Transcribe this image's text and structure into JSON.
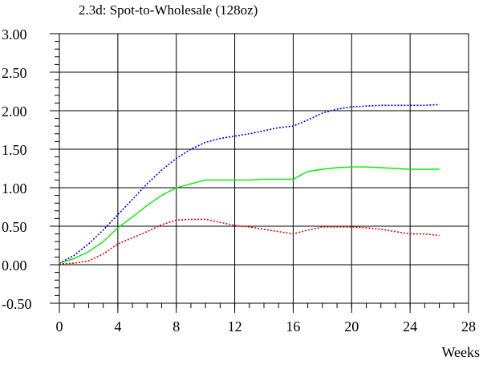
{
  "chart_data": {
    "type": "line",
    "title": "2.3d: Spot-to-Wholesale (128oz)",
    "xlabel": "Weeks",
    "ylabel": "",
    "xlim": [
      0,
      28
    ],
    "ylim": [
      -0.5,
      3.0
    ],
    "x_ticks": [
      "0",
      "4",
      "8",
      "12",
      "16",
      "20",
      "24",
      "28"
    ],
    "y_ticks": [
      "-0.50",
      "0.00",
      "0.50",
      "1.00",
      "1.50",
      "2.00",
      "2.50",
      "3.00"
    ],
    "grid": true,
    "series": [
      {
        "color": "#0000ff",
        "style": "dotted",
        "x": [
          0,
          1,
          2,
          3,
          4,
          5,
          6,
          7,
          8,
          9,
          10,
          11,
          12,
          13,
          14,
          15,
          16,
          17,
          18,
          19,
          20,
          21,
          22,
          23,
          24,
          25,
          26
        ],
        "y": [
          0.02,
          0.12,
          0.27,
          0.45,
          0.65,
          0.85,
          1.05,
          1.23,
          1.38,
          1.5,
          1.59,
          1.64,
          1.67,
          1.7,
          1.74,
          1.78,
          1.8,
          1.88,
          1.97,
          2.02,
          2.05,
          2.06,
          2.07,
          2.07,
          2.07,
          2.07,
          2.08
        ]
      },
      {
        "color": "#00ee00",
        "style": "solid",
        "x": [
          0,
          1,
          2,
          3,
          4,
          5,
          6,
          7,
          8,
          9,
          10,
          11,
          12,
          13,
          14,
          15,
          16,
          17,
          18,
          19,
          20,
          21,
          22,
          23,
          24,
          25,
          26
        ],
        "y": [
          0.02,
          0.08,
          0.17,
          0.3,
          0.48,
          0.62,
          0.77,
          0.9,
          1.0,
          1.05,
          1.1,
          1.1,
          1.1,
          1.1,
          1.11,
          1.11,
          1.11,
          1.21,
          1.24,
          1.26,
          1.27,
          1.27,
          1.26,
          1.25,
          1.24,
          1.24,
          1.24
        ]
      },
      {
        "color": "#ee0000",
        "style": "dotted",
        "x": [
          0,
          1,
          2,
          3,
          4,
          5,
          6,
          7,
          8,
          9,
          10,
          11,
          12,
          13,
          14,
          15,
          16,
          17,
          18,
          19,
          20,
          21,
          22,
          23,
          24,
          25,
          26
        ],
        "y": [
          0.01,
          0.02,
          0.05,
          0.14,
          0.27,
          0.35,
          0.43,
          0.52,
          0.58,
          0.59,
          0.59,
          0.55,
          0.51,
          0.49,
          0.46,
          0.43,
          0.4,
          0.45,
          0.49,
          0.49,
          0.49,
          0.48,
          0.46,
          0.43,
          0.4,
          0.4,
          0.38
        ]
      }
    ]
  }
}
